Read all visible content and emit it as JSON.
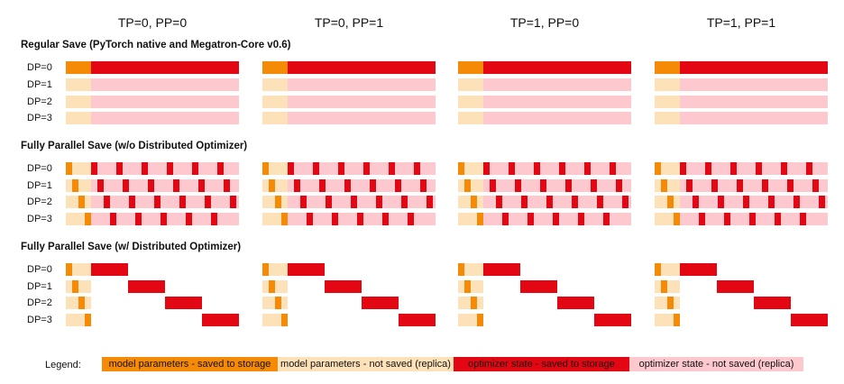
{
  "columns": [
    "TP=0, PP=0",
    "TP=0, PP=1",
    "TP=1, PP=0",
    "TP=1, PP=1"
  ],
  "sections": [
    {
      "title": "Regular Save (PyTorch native and Megatron-Core v0.6)",
      "pattern": "regular"
    },
    {
      "title": "Fully Parallel Save (w/o Distributed Optimizer)",
      "pattern": "parallel-no-dist"
    },
    {
      "title": "Fully Parallel Save (w/ Distributed Optimizer)",
      "pattern": "parallel-dist"
    }
  ],
  "dp_labels": [
    "DP=0",
    "DP=1",
    "DP=2",
    "DP=3"
  ],
  "legend": {
    "label": "Legend:",
    "items": [
      {
        "text": "model parameters - saved to storage",
        "color": "#f58a07"
      },
      {
        "text": "model parameters - not saved (replica)",
        "color": "#fde1b8"
      },
      {
        "text": "optimizer state - saved to storage",
        "color": "#e30613"
      },
      {
        "text": "optimizer state - not saved (replica)",
        "color": "#fdc8ce"
      }
    ]
  },
  "colors": {
    "param_saved": "#f58a07",
    "param_replica": "#fde1b8",
    "optim_saved": "#e30613",
    "optim_replica": "#fdc8ce"
  }
}
